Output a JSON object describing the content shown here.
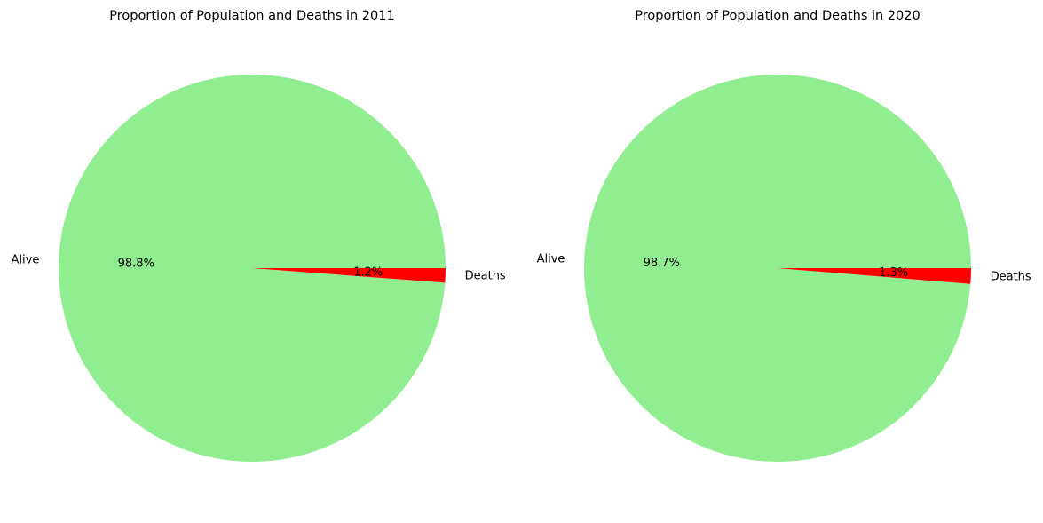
{
  "chart_data": [
    {
      "type": "pie",
      "title": "Proportion of Population and Deaths in 2011",
      "labels": [
        "Alive",
        "Deaths"
      ],
      "values": [
        98.8,
        1.2
      ],
      "percent_labels": [
        "98.8%",
        "1.2%"
      ],
      "colors": [
        "#90EE90",
        "#FF0000"
      ]
    },
    {
      "type": "pie",
      "title": "Proportion of Population and Deaths in 2020",
      "labels": [
        "Alive",
        "Deaths"
      ],
      "values": [
        98.7,
        1.3
      ],
      "percent_labels": [
        "98.7%",
        "1.3%"
      ],
      "colors": [
        "#90EE90",
        "#FF0000"
      ]
    }
  ]
}
